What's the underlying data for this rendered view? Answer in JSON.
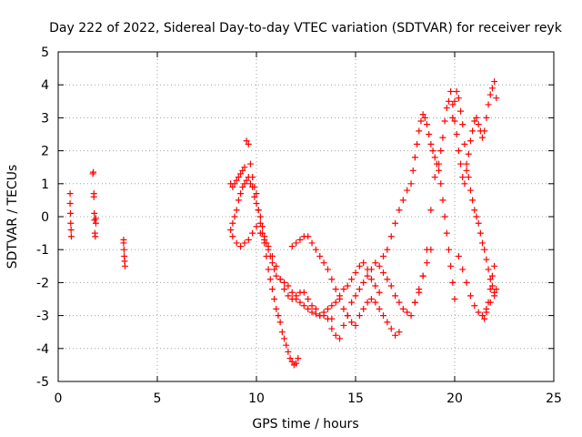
{
  "chart_data": {
    "type": "scatter",
    "title": "Day 222 of 2022, Sidereal Day-to-day VTEC variation (SDTVAR) for receiver reyk",
    "xlabel": "GPS time / hours",
    "ylabel": "SDTVAR / TECUs",
    "xlim": [
      0,
      25
    ],
    "ylim": [
      -5,
      5
    ],
    "xticks": [
      0,
      5,
      10,
      15,
      20,
      25
    ],
    "yticks": [
      -5,
      -4,
      -3,
      -2,
      -1,
      0,
      1,
      2,
      3,
      4,
      5
    ],
    "grid": true,
    "marker": "+",
    "color": "#ff0000",
    "series": [
      {
        "name": "SDTVAR",
        "x": [
          0.6,
          0.6,
          0.62,
          0.63,
          0.65,
          0.66,
          1.75,
          1.77,
          1.8,
          1.8,
          1.82,
          1.83,
          1.85,
          1.87,
          1.9,
          1.9,
          3.3,
          3.3,
          3.32,
          3.33,
          3.35,
          3.37,
          8.7,
          8.8,
          8.9,
          9.0,
          9.1,
          9.2,
          9.3,
          9.4,
          9.5,
          9.6,
          9.7,
          9.8,
          9.9,
          10.0,
          10.1,
          10.2,
          10.3,
          10.4,
          10.5,
          10.6,
          10.7,
          10.8,
          10.9,
          11.0,
          11.1,
          11.2,
          11.3,
          11.4,
          11.5,
          11.6,
          11.7,
          11.8,
          11.9,
          12.0,
          12.1,
          8.7,
          8.8,
          8.9,
          9.0,
          9.1,
          9.2,
          9.3,
          9.4,
          9.5,
          9.6,
          9.7,
          9.8,
          9.9,
          10.0,
          10.1,
          10.2,
          10.3,
          10.4,
          10.5,
          10.6,
          10.7,
          10.8,
          10.9,
          11.0,
          11.2,
          11.4,
          11.6,
          11.8,
          12.0,
          12.2,
          12.4,
          12.6,
          12.8,
          13.0,
          13.2,
          13.4,
          13.6,
          13.8,
          8.8,
          9.0,
          9.2,
          9.4,
          9.6,
          9.8,
          10.0,
          10.2,
          10.4,
          10.6,
          10.8,
          11.0,
          11.2,
          11.4,
          11.6,
          11.8,
          12.0,
          12.2,
          12.4,
          12.6,
          12.8,
          13.0,
          13.2,
          13.4,
          13.6,
          13.8,
          14.0,
          14.2,
          14.4,
          14.6,
          14.8,
          15.0,
          15.2,
          15.4,
          15.6,
          15.8,
          16.0,
          16.2,
          11.8,
          12.0,
          12.2,
          12.4,
          12.6,
          12.8,
          13.0,
          13.2,
          13.4,
          13.6,
          13.8,
          14.0,
          14.2,
          14.4,
          14.6,
          14.8,
          15.0,
          15.2,
          15.4,
          15.6,
          15.8,
          16.0,
          16.2,
          16.4,
          16.6,
          16.8,
          17.0,
          17.2,
          13.8,
          14.0,
          14.2,
          14.4,
          14.6,
          14.8,
          15.0,
          15.2,
          15.4,
          15.6,
          15.8,
          16.0,
          16.2,
          16.4,
          16.6,
          16.8,
          17.0,
          17.2,
          17.4,
          17.6,
          17.8,
          18.0,
          18.2,
          18.4,
          18.6,
          18.8,
          16.4,
          16.6,
          16.8,
          17.0,
          17.2,
          17.4,
          17.6,
          17.8,
          17.9,
          18.0,
          18.1,
          18.2,
          18.3,
          18.4,
          18.5,
          18.6,
          18.7,
          18.8,
          18.9,
          19.0,
          19.1,
          19.2,
          19.3,
          19.4,
          19.5,
          19.6,
          19.7,
          19.8,
          19.9,
          20.0,
          18.0,
          18.2,
          18.4,
          18.6,
          18.8,
          19.0,
          19.2,
          19.3,
          19.4,
          19.5,
          19.6,
          19.7,
          19.8,
          19.9,
          20.0,
          20.1,
          20.2,
          20.3,
          20.4,
          20.5,
          20.6,
          20.7,
          20.8,
          20.9,
          21.0,
          21.1,
          21.2,
          21.3,
          21.4,
          21.5,
          21.6,
          21.7,
          21.8,
          21.9,
          22.0,
          22.1,
          19.9,
          20.0,
          20.1,
          20.2,
          20.3,
          20.4,
          20.5,
          20.6,
          20.7,
          20.8,
          20.9,
          21.0,
          21.1,
          21.2,
          21.3,
          21.4,
          21.5,
          21.6,
          21.7,
          21.8,
          21.9,
          22.0,
          20.2,
          20.4,
          20.6,
          20.8,
          21.0,
          21.2,
          21.4,
          21.6,
          21.8,
          22.0,
          22.1,
          21.5,
          21.6,
          21.7,
          21.8,
          21.9,
          22.0
        ],
        "y": [
          0.7,
          0.4,
          0.1,
          -0.2,
          -0.4,
          -0.6,
          1.3,
          1.35,
          0.7,
          0.6,
          0.1,
          -0.1,
          -0.5,
          -0.6,
          -0.2,
          -0.05,
          -0.7,
          -0.8,
          -1.0,
          -1.2,
          -1.35,
          -1.5,
          1.0,
          0.9,
          1.0,
          1.1,
          1.2,
          1.3,
          1.4,
          1.5,
          2.3,
          2.2,
          1.6,
          1.2,
          0.9,
          0.7,
          0.2,
          -0.2,
          -0.5,
          -0.8,
          -1.2,
          -1.6,
          -1.9,
          -2.2,
          -2.5,
          -2.8,
          -3.0,
          -3.2,
          -3.5,
          -3.7,
          -3.9,
          -4.1,
          -4.3,
          -4.4,
          -4.5,
          -4.45,
          -4.3,
          -0.4,
          -0.2,
          0.0,
          0.2,
          0.5,
          0.7,
          0.9,
          1.0,
          1.1,
          1.2,
          1.0,
          0.9,
          0.6,
          0.4,
          0.2,
          0.0,
          -0.3,
          -0.6,
          -0.8,
          -1.0,
          -1.2,
          -1.4,
          -1.6,
          -1.8,
          -1.9,
          -2.0,
          -2.1,
          -2.3,
          -2.5,
          -2.6,
          -2.7,
          -2.8,
          -2.9,
          -2.95,
          -3.0,
          -3.0,
          -3.1,
          -3.1,
          -0.6,
          -0.8,
          -0.9,
          -0.8,
          -0.7,
          -0.5,
          -0.3,
          -0.5,
          -0.7,
          -0.9,
          -1.2,
          -1.5,
          -1.9,
          -2.2,
          -2.4,
          -2.5,
          -2.4,
          -2.3,
          -2.3,
          -2.5,
          -2.7,
          -2.8,
          -3.0,
          -2.9,
          -2.8,
          -2.7,
          -2.6,
          -2.4,
          -2.2,
          -2.1,
          -1.9,
          -1.7,
          -1.5,
          -1.4,
          -1.6,
          -1.9,
          -2.1,
          -2.3,
          -0.9,
          -0.8,
          -0.7,
          -0.6,
          -0.6,
          -0.8,
          -1.0,
          -1.2,
          -1.4,
          -1.6,
          -1.9,
          -2.2,
          -2.5,
          -2.8,
          -3.0,
          -3.2,
          -3.3,
          -3.0,
          -2.8,
          -2.6,
          -2.5,
          -2.6,
          -2.8,
          -3.0,
          -3.2,
          -3.4,
          -3.6,
          -3.5,
          -3.4,
          -3.6,
          -3.7,
          -3.3,
          -3.0,
          -2.6,
          -2.4,
          -2.2,
          -2.0,
          -1.8,
          -1.6,
          -1.4,
          -1.5,
          -1.7,
          -1.9,
          -2.1,
          -2.4,
          -2.6,
          -2.8,
          -2.9,
          -3.0,
          -2.6,
          -2.2,
          -1.8,
          -1.4,
          -1.0,
          -1.2,
          -1.0,
          -0.6,
          -0.2,
          0.2,
          0.5,
          0.8,
          1.0,
          1.4,
          1.8,
          2.2,
          2.6,
          2.9,
          3.1,
          3.0,
          2.8,
          2.5,
          2.2,
          2.0,
          1.8,
          1.6,
          1.4,
          1.0,
          0.5,
          0.0,
          -0.5,
          -1.0,
          -1.5,
          -2.0,
          -2.5,
          -2.6,
          -2.3,
          -1.8,
          -1.0,
          0.2,
          1.2,
          1.6,
          2.0,
          2.4,
          2.9,
          3.3,
          3.5,
          3.8,
          3.4,
          2.9,
          2.5,
          2.0,
          1.6,
          1.2,
          1.0,
          1.4,
          1.9,
          2.3,
          2.6,
          2.9,
          3.0,
          2.8,
          2.6,
          2.4,
          2.6,
          3.0,
          3.4,
          3.7,
          3.9,
          4.1,
          3.6,
          3.0,
          3.5,
          3.8,
          3.6,
          3.2,
          2.8,
          2.2,
          1.6,
          1.2,
          0.8,
          0.5,
          0.2,
          0.0,
          -0.2,
          -0.5,
          -0.8,
          -1.0,
          -1.3,
          -1.6,
          -1.9,
          -2.1,
          -2.3,
          -1.2,
          -1.6,
          -2.0,
          -2.4,
          -2.7,
          -2.9,
          -3.0,
          -2.8,
          -2.6,
          -2.4,
          -2.2,
          -3.1,
          -2.9,
          -2.6,
          -2.2,
          -1.8,
          -1.5
        ]
      }
    ]
  }
}
